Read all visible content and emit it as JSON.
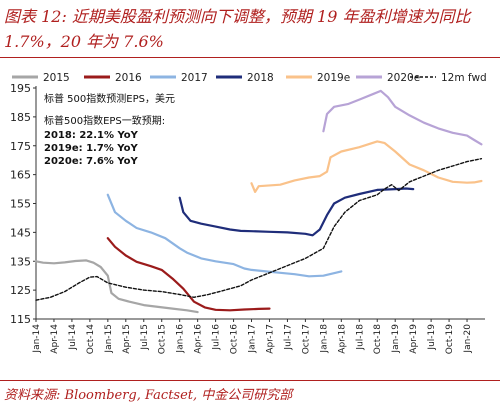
{
  "title": "图表 12: 近期美股盈利预测向下调整，预期 19 年盈利增速为同比 1.7%，20 年为 7.6%",
  "source": "资料来源: Bloomberg, Factset, 中金公司研究部",
  "chart_data": {
    "type": "line",
    "ylim": [
      115,
      195
    ],
    "yticks": [
      115,
      125,
      135,
      145,
      155,
      165,
      175,
      185,
      195
    ],
    "xlim": [
      2014.0,
      2020.25
    ],
    "xtick_labels": [
      "Jan-14",
      "Apr-14",
      "Jul-14",
      "Oct-14",
      "Jan-15",
      "Apr-15",
      "Jul-15",
      "Oct-15",
      "Jan-16",
      "Apr-16",
      "Jul-16",
      "Oct-16",
      "Jan-17",
      "Apr-17",
      "Jul-17",
      "Oct-17",
      "Jan-18",
      "Apr-18",
      "Jul-18",
      "Oct-18",
      "Jan-19",
      "Apr-19",
      "Jul-19",
      "Oct-19",
      "Jan-20"
    ],
    "annotation_lines": [
      "标普 500指数预测EPS，美元",
      "标普500指数EPS一致预期:",
      "2018: 22.1% YoY",
      "2019e: 1.7% YoY",
      "2020e: 7.6% YoY"
    ],
    "series": [
      {
        "name": "2015",
        "color": "#a6a6a6",
        "dash": "",
        "points": [
          [
            2014.0,
            135
          ],
          [
            2014.1,
            134.5
          ],
          [
            2014.25,
            134.3
          ],
          [
            2014.4,
            134.6
          ],
          [
            2014.55,
            135.1
          ],
          [
            2014.7,
            135.3
          ],
          [
            2014.8,
            134.5
          ],
          [
            2014.9,
            133
          ],
          [
            2015.0,
            130
          ],
          [
            2015.05,
            124
          ],
          [
            2015.15,
            122
          ],
          [
            2015.3,
            121
          ],
          [
            2015.5,
            119.8
          ],
          [
            2015.7,
            119.2
          ],
          [
            2015.9,
            118.6
          ],
          [
            2016.1,
            118
          ],
          [
            2016.25,
            117.4
          ]
        ]
      },
      {
        "name": "2016",
        "color": "#9b1b1b",
        "dash": "",
        "points": [
          [
            2015.0,
            143
          ],
          [
            2015.1,
            140
          ],
          [
            2015.25,
            137
          ],
          [
            2015.4,
            134.8
          ],
          [
            2015.6,
            133.3
          ],
          [
            2015.75,
            132
          ],
          [
            2015.9,
            129
          ],
          [
            2016.05,
            125.5
          ],
          [
            2016.2,
            121
          ],
          [
            2016.35,
            119
          ],
          [
            2016.5,
            118.2
          ],
          [
            2016.7,
            118
          ],
          [
            2016.9,
            118.3
          ],
          [
            2017.1,
            118.5
          ],
          [
            2017.25,
            118.6
          ]
        ]
      },
      {
        "name": "2017",
        "color": "#8db4e2",
        "dash": "",
        "points": [
          [
            2015.0,
            158
          ],
          [
            2015.1,
            152
          ],
          [
            2015.25,
            149
          ],
          [
            2015.4,
            146.5
          ],
          [
            2015.6,
            145
          ],
          [
            2015.8,
            143
          ],
          [
            2016.0,
            139.5
          ],
          [
            2016.1,
            138
          ],
          [
            2016.3,
            136
          ],
          [
            2016.5,
            135
          ],
          [
            2016.75,
            134
          ],
          [
            2016.9,
            132.5
          ],
          [
            2017.0,
            132
          ],
          [
            2017.2,
            131.5
          ],
          [
            2017.4,
            131
          ],
          [
            2017.6,
            130.5
          ],
          [
            2017.8,
            129.8
          ],
          [
            2018.0,
            130
          ],
          [
            2018.25,
            131.5
          ]
        ]
      },
      {
        "name": "2018",
        "color": "#1f2d7a",
        "dash": "",
        "points": [
          [
            2016.0,
            157
          ],
          [
            2016.05,
            152
          ],
          [
            2016.15,
            149
          ],
          [
            2016.3,
            148
          ],
          [
            2016.5,
            147
          ],
          [
            2016.7,
            146
          ],
          [
            2016.85,
            145.5
          ],
          [
            2017.0,
            145.4
          ],
          [
            2017.25,
            145.2
          ],
          [
            2017.5,
            145
          ],
          [
            2017.75,
            144.5
          ],
          [
            2017.85,
            144
          ],
          [
            2017.95,
            146
          ],
          [
            2018.05,
            151
          ],
          [
            2018.15,
            155
          ],
          [
            2018.3,
            157
          ],
          [
            2018.5,
            158.3
          ],
          [
            2018.75,
            159.7
          ],
          [
            2019.0,
            160
          ],
          [
            2019.15,
            160.2
          ],
          [
            2019.25,
            160
          ]
        ]
      },
      {
        "name": "2019e",
        "color": "#fac28a",
        "dash": "",
        "points": [
          [
            2017.0,
            162
          ],
          [
            2017.05,
            159
          ],
          [
            2017.1,
            161
          ],
          [
            2017.4,
            161.5
          ],
          [
            2017.6,
            163
          ],
          [
            2017.8,
            164
          ],
          [
            2017.95,
            164.5
          ],
          [
            2018.05,
            166
          ],
          [
            2018.1,
            171
          ],
          [
            2018.25,
            173
          ],
          [
            2018.5,
            174.5
          ],
          [
            2018.75,
            176.5
          ],
          [
            2018.85,
            176
          ],
          [
            2019.0,
            173
          ],
          [
            2019.2,
            168.5
          ],
          [
            2019.4,
            166.5
          ],
          [
            2019.6,
            164
          ],
          [
            2019.8,
            162.5
          ],
          [
            2020.0,
            162.2
          ],
          [
            2020.1,
            162.3
          ],
          [
            2020.2,
            162.8
          ]
        ]
      },
      {
        "name": "2020e",
        "color": "#b7a3d6",
        "dash": "",
        "points": [
          [
            2018.0,
            180
          ],
          [
            2018.05,
            186
          ],
          [
            2018.15,
            188.5
          ],
          [
            2018.35,
            189.5
          ],
          [
            2018.5,
            191
          ],
          [
            2018.7,
            193
          ],
          [
            2018.8,
            194
          ],
          [
            2018.9,
            191.8
          ],
          [
            2019.0,
            188.5
          ],
          [
            2019.2,
            185.5
          ],
          [
            2019.4,
            183
          ],
          [
            2019.6,
            181
          ],
          [
            2019.8,
            179.5
          ],
          [
            2020.0,
            178.5
          ],
          [
            2020.1,
            177
          ],
          [
            2020.2,
            175.5
          ]
        ]
      },
      {
        "name": "12m fwd",
        "color": "#111111",
        "dash": "3,2",
        "points": [
          [
            2014.0,
            121.5
          ],
          [
            2014.2,
            122.5
          ],
          [
            2014.4,
            124.5
          ],
          [
            2014.6,
            127.5
          ],
          [
            2014.75,
            129.5
          ],
          [
            2014.85,
            129.7
          ],
          [
            2015.0,
            127.5
          ],
          [
            2015.25,
            126
          ],
          [
            2015.5,
            125
          ],
          [
            2015.75,
            124.5
          ],
          [
            2016.0,
            123.5
          ],
          [
            2016.2,
            122.5
          ],
          [
            2016.4,
            123.5
          ],
          [
            2016.6,
            124.8
          ],
          [
            2016.85,
            126.5
          ],
          [
            2017.0,
            128.5
          ],
          [
            2017.25,
            131
          ],
          [
            2017.5,
            133.5
          ],
          [
            2017.75,
            136
          ],
          [
            2018.0,
            139.5
          ],
          [
            2018.15,
            147
          ],
          [
            2018.3,
            152
          ],
          [
            2018.5,
            156
          ],
          [
            2018.75,
            158
          ],
          [
            2018.85,
            160
          ],
          [
            2018.95,
            161.5
          ],
          [
            2019.05,
            159.5
          ],
          [
            2019.2,
            162.5
          ],
          [
            2019.4,
            164.5
          ],
          [
            2019.6,
            166.5
          ],
          [
            2019.8,
            168
          ],
          [
            2020.0,
            169.5
          ],
          [
            2020.2,
            170.5
          ]
        ]
      }
    ]
  }
}
